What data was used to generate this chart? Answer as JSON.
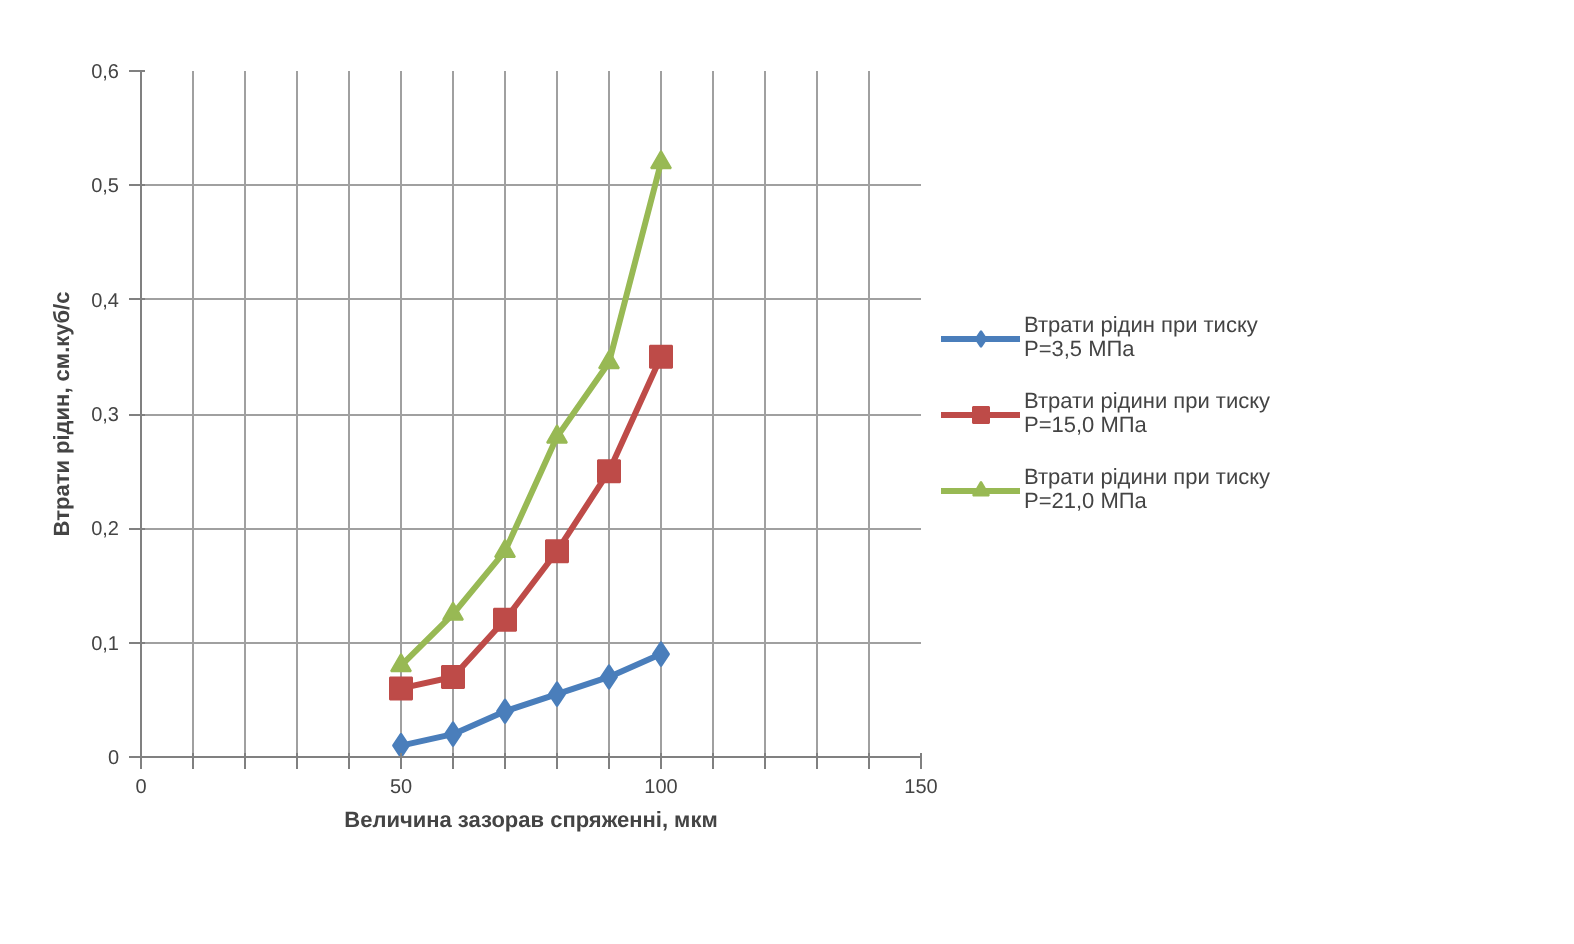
{
  "chart_data": {
    "type": "line",
    "xlabel": "Величина зазорав спряженні, мкм",
    "ylabel": "Втрати рідин, см.куб/с",
    "x": [
      50,
      60,
      70,
      80,
      90,
      100
    ],
    "series": [
      {
        "name": "Втрати рідин при тиску\nP=3,5 МПа",
        "color": "#4a7ebb",
        "marker": "diamond",
        "values": [
          0.01,
          0.02,
          0.04,
          0.055,
          0.07,
          0.09
        ]
      },
      {
        "name": "Втрати рідини при тиску\nP=15,0 МПа",
        "color": "#be4b48",
        "marker": "square",
        "values": [
          0.06,
          0.07,
          0.12,
          0.18,
          0.25,
          0.35
        ]
      },
      {
        "name": "Втрати рідини при тиску\nP=21,0 МПа",
        "color": "#98b954",
        "marker": "triangle",
        "values": [
          0.08,
          0.125,
          0.18,
          0.28,
          0.345,
          0.52
        ]
      }
    ],
    "xlim": [
      0,
      150
    ],
    "ylim": [
      0,
      0.6
    ],
    "xticks": [
      0,
      {
        "value": 10,
        "label": null
      },
      {
        "value": 20,
        "label": null
      },
      {
        "value": 30,
        "label": null
      },
      {
        "value": 40,
        "label": null
      },
      50,
      {
        "value": 60,
        "label": null
      },
      {
        "value": 70,
        "label": null
      },
      {
        "value": 80,
        "label": null
      },
      {
        "value": 90,
        "label": null
      },
      100,
      {
        "value": 110,
        "label": null
      },
      {
        "value": 120,
        "label": null
      },
      {
        "value": 130,
        "label": null
      },
      {
        "value": 140,
        "label": null
      },
      150
    ],
    "yticks": [
      0,
      {
        "value": 0.1,
        "label": "0,1"
      },
      {
        "value": 0.2,
        "label": "0,2"
      },
      {
        "value": 0.3,
        "label": "0,3"
      },
      {
        "value": 0.4,
        "label": "0,4"
      },
      {
        "value": 0.5,
        "label": "0,5"
      },
      {
        "value": 0.6,
        "label": "0,6"
      }
    ],
    "grid": true,
    "legend": "right",
    "line_style": "solid"
  }
}
